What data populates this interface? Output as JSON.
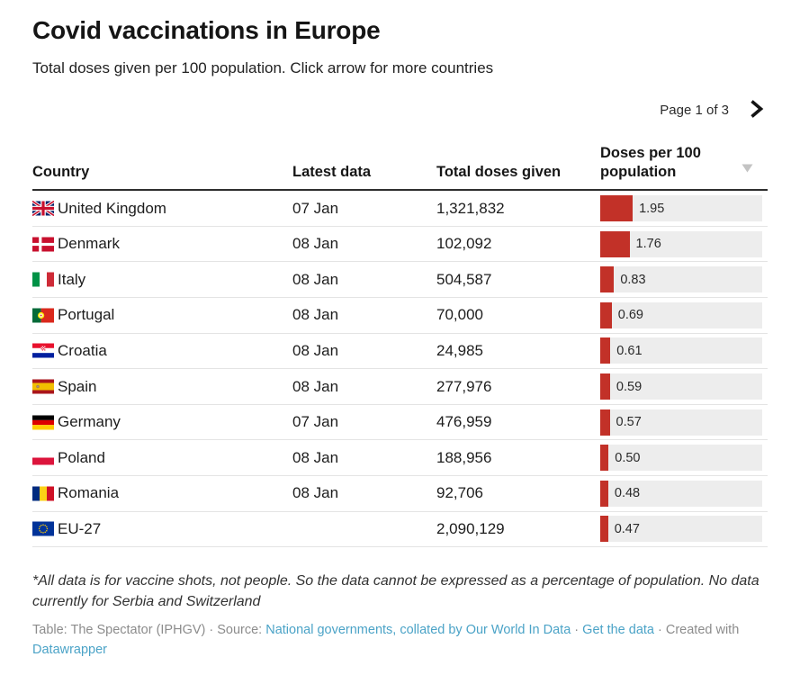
{
  "header": {
    "title": "Covid vaccinations in Europe",
    "subtitle": "Total doses given per 100 population. Click arrow for more countries"
  },
  "pagination": {
    "label": "Page 1 of 3",
    "next_icon": "chevron-right-icon"
  },
  "chart_data": {
    "type": "table",
    "title": "Covid vaccinations in Europe",
    "subtitle": "Total doses given per 100 population. Click arrow for more countries",
    "columns": [
      "Country",
      "Latest data",
      "Total doses given",
      "Doses per 100 population"
    ],
    "sorted_by": "Doses per 100 population",
    "sort_direction": "descending",
    "bar_color": "#c23128",
    "bar_background": "#ededed",
    "rows": [
      {
        "flag": "gb",
        "country": "United Kingdom",
        "latest_data": "07 Jan",
        "total_doses": "1,321,832",
        "doses_per_100": 1.95
      },
      {
        "flag": "dk",
        "country": "Denmark",
        "latest_data": "08 Jan",
        "total_doses": "102,092",
        "doses_per_100": 1.76
      },
      {
        "flag": "it",
        "country": "Italy",
        "latest_data": "08 Jan",
        "total_doses": "504,587",
        "doses_per_100": 0.83
      },
      {
        "flag": "pt",
        "country": "Portugal",
        "latest_data": "08 Jan",
        "total_doses": "70,000",
        "doses_per_100": 0.69
      },
      {
        "flag": "hr",
        "country": "Croatia",
        "latest_data": "08 Jan",
        "total_doses": "24,985",
        "doses_per_100": 0.61
      },
      {
        "flag": "es",
        "country": "Spain",
        "latest_data": "08 Jan",
        "total_doses": "277,976",
        "doses_per_100": 0.59
      },
      {
        "flag": "de",
        "country": "Germany",
        "latest_data": "07 Jan",
        "total_doses": "476,959",
        "doses_per_100": 0.57
      },
      {
        "flag": "pl",
        "country": "Poland",
        "latest_data": "08 Jan",
        "total_doses": "188,956",
        "doses_per_100": 0.5
      },
      {
        "flag": "ro",
        "country": "Romania",
        "latest_data": "08 Jan",
        "total_doses": "92,706",
        "doses_per_100": 0.48
      },
      {
        "flag": "eu",
        "country": "EU-27",
        "latest_data": "",
        "total_doses": "2,090,129",
        "doses_per_100": 0.47
      }
    ]
  },
  "footer": {
    "note": "*All data is for vaccine shots, not people. So the data cannot be expressed as a percentage of population. No data currently for Serbia and Switzerland",
    "meta_prefix": "Table: The Spectator (IPHGV) · Source: ",
    "source_link": "National governments, collated by Our World In Data",
    "separator1": " · ",
    "get_data_link": "Get the data",
    "separator2": " · ",
    "created_with": "Created with ",
    "datawrapper_link": "Datawrapper"
  }
}
